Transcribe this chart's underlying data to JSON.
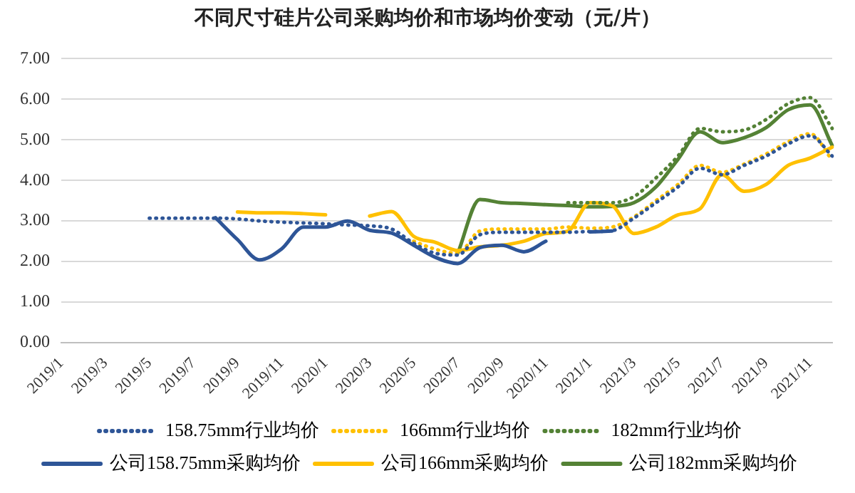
{
  "chart_data": {
    "type": "line",
    "title": "不同尺寸硅片公司采购均价和市场均价变动（元/片）",
    "categories": [
      "2019/1",
      null,
      "2019/3",
      null,
      "2019/5",
      null,
      "2019/7",
      null,
      "2019/9",
      null,
      "2019/11",
      null,
      "2020/1",
      null,
      "2020/3",
      null,
      "2020/5",
      null,
      "2020/7",
      null,
      "2020/9",
      null,
      "2020/11",
      null,
      "2021/1",
      null,
      "2021/3",
      null,
      "2021/5",
      null,
      "2021/7",
      null,
      "2021/9",
      null,
      "2021/11",
      null
    ],
    "ylim": [
      0,
      7
    ],
    "yticks": [
      {
        "value": 0,
        "label": "0.00"
      },
      {
        "value": 1,
        "label": "1.00"
      },
      {
        "value": 2,
        "label": "2.00"
      },
      {
        "value": 3,
        "label": "3.00"
      },
      {
        "value": 4,
        "label": "4.00"
      },
      {
        "value": 5,
        "label": "5.00"
      },
      {
        "value": 6,
        "label": "6.00"
      },
      {
        "value": 7,
        "label": "7.00"
      }
    ],
    "grid": "y",
    "legend": "bottom",
    "marker": "none",
    "series": [
      {
        "name": "158.75mm行业均价",
        "color": "#2e5597",
        "line_style": "dotted",
        "values": [
          null,
          null,
          null,
          null,
          3.07,
          3.07,
          3.07,
          3.07,
          3.05,
          3.0,
          2.97,
          2.95,
          2.93,
          2.9,
          2.88,
          2.8,
          2.45,
          2.2,
          2.16,
          2.66,
          2.72,
          2.72,
          2.72,
          2.72,
          2.74,
          2.76,
          3.07,
          3.45,
          3.84,
          4.3,
          4.14,
          4.37,
          4.6,
          4.9,
          5.1,
          4.6
        ]
      },
      {
        "name": "166mm行业均价",
        "color": "#ffc000",
        "line_style": "dotted",
        "values": [
          null,
          null,
          null,
          null,
          null,
          null,
          null,
          null,
          null,
          null,
          null,
          null,
          null,
          null,
          null,
          null,
          2.5,
          2.3,
          2.2,
          2.75,
          2.8,
          2.8,
          2.8,
          2.85,
          2.82,
          2.85,
          3.1,
          3.5,
          3.9,
          4.37,
          4.2,
          4.4,
          4.65,
          4.95,
          5.15,
          4.5
        ]
      },
      {
        "name": "182mm行业均价",
        "color": "#538135",
        "line_style": "dotted",
        "values": [
          null,
          null,
          null,
          null,
          null,
          null,
          null,
          null,
          null,
          null,
          null,
          null,
          null,
          null,
          null,
          null,
          null,
          null,
          null,
          null,
          null,
          null,
          null,
          3.45,
          3.45,
          3.45,
          3.6,
          4.06,
          4.6,
          5.28,
          5.2,
          5.24,
          5.5,
          5.89,
          6.04,
          5.28
        ]
      },
      {
        "name": "公司158.75mm采购均价",
        "color": "#2e5597",
        "line_style": "solid",
        "values": [
          null,
          null,
          null,
          null,
          null,
          null,
          null,
          3.08,
          2.54,
          2.04,
          2.31,
          2.85,
          2.85,
          3.0,
          2.77,
          2.7,
          2.4,
          2.1,
          1.95,
          2.34,
          2.4,
          2.24,
          2.5,
          null,
          2.73,
          2.75,
          null,
          null,
          null,
          null,
          null,
          null,
          null,
          null,
          null,
          null
        ]
      },
      {
        "name": "公司166mm采购均价",
        "color": "#ffc000",
        "line_style": "solid",
        "values": [
          null,
          null,
          null,
          null,
          null,
          null,
          null,
          null,
          3.22,
          3.2,
          3.2,
          3.18,
          3.15,
          null,
          3.12,
          3.23,
          2.62,
          2.47,
          2.27,
          2.36,
          2.4,
          2.5,
          2.69,
          2.75,
          3.45,
          3.38,
          2.69,
          2.85,
          3.15,
          3.3,
          4.14,
          3.73,
          3.9,
          4.37,
          4.55,
          4.82
        ]
      },
      {
        "name": "公司182mm采购均价",
        "color": "#548235",
        "line_style": "solid",
        "values": [
          null,
          null,
          null,
          null,
          null,
          null,
          null,
          null,
          null,
          null,
          null,
          null,
          null,
          null,
          null,
          null,
          null,
          null,
          2.2,
          3.53,
          3.45,
          3.43,
          3.4,
          3.38,
          3.35,
          3.36,
          3.45,
          3.84,
          4.52,
          5.2,
          4.93,
          5.05,
          5.3,
          5.74,
          5.86,
          4.86
        ]
      }
    ]
  }
}
